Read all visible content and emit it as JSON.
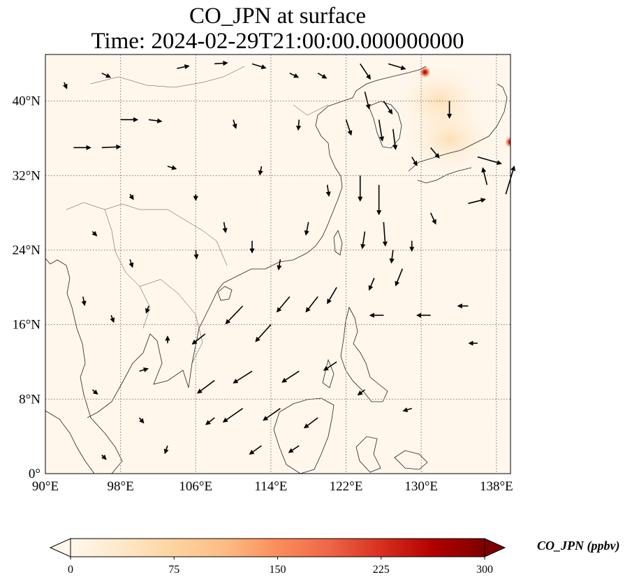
{
  "title": {
    "line1": "CO_JPN at surface",
    "line2": "Time: 2024-02-29T21:00:00.000000000"
  },
  "chart_data": {
    "type": "heatmap",
    "variable": "CO_JPN",
    "level": "surface",
    "time": "2024-02-29T21:00:00.000000000",
    "lon_range": [
      90,
      139.5
    ],
    "lat_range": [
      0,
      45
    ],
    "x_ticks": [
      "90°E",
      "98°E",
      "106°E",
      "114°E",
      "122°E",
      "130°E",
      "138°E"
    ],
    "x_tick_values": [
      90,
      98,
      106,
      114,
      122,
      130,
      138
    ],
    "y_ticks": [
      "0°",
      "8°N",
      "16°N",
      "24°N",
      "32°N",
      "40°N"
    ],
    "y_tick_values": [
      0,
      8,
      16,
      24,
      32,
      40
    ],
    "grid": true,
    "colorbar": {
      "label": "CO_JPN (ppbv)",
      "ticks": [
        "0",
        "75",
        "150",
        "225",
        "300"
      ],
      "tick_values": [
        0,
        75,
        150,
        225,
        300
      ],
      "range": [
        0,
        300
      ],
      "colormap": "OrRd",
      "colors": [
        "#fff7ec",
        "#fee8c8",
        "#fdd49e",
        "#fdbb84",
        "#fc8d59",
        "#ef6548",
        "#d7301f",
        "#b30000",
        "#7f0000"
      ],
      "extend": "both"
    },
    "hotspots": [
      {
        "lon": 130.4,
        "lat": 43.1,
        "value": 300
      },
      {
        "lon": 139.5,
        "lat": 35.6,
        "value": 280
      }
    ],
    "enhanced_regions": [
      {
        "lon": 133,
        "lat": 36,
        "value": 30
      },
      {
        "lon": 132,
        "lat": 40,
        "value": 20
      }
    ],
    "wind_vectors": [
      {
        "lon": 92,
        "lat": 42,
        "u": 0.3,
        "v": -0.7
      },
      {
        "lon": 96,
        "lat": 43,
        "u": 1.0,
        "v": -0.5
      },
      {
        "lon": 104,
        "lat": 43.5,
        "u": 1.4,
        "v": 0.3
      },
      {
        "lon": 108,
        "lat": 44,
        "u": 1.5,
        "v": 0.1
      },
      {
        "lon": 112,
        "lat": 44,
        "u": 1.6,
        "v": -0.5
      },
      {
        "lon": 116,
        "lat": 43,
        "u": 1.0,
        "v": -0.5
      },
      {
        "lon": 119,
        "lat": 43,
        "u": 1.0,
        "v": -0.6
      },
      {
        "lon": 93,
        "lat": 35,
        "u": 2.0,
        "v": 0.0
      },
      {
        "lon": 96,
        "lat": 35,
        "u": 2.2,
        "v": 0.1
      },
      {
        "lon": 98,
        "lat": 38,
        "u": 2.0,
        "v": 0.0
      },
      {
        "lon": 101,
        "lat": 38,
        "u": 1.5,
        "v": -0.2
      },
      {
        "lon": 103,
        "lat": 33,
        "u": 1.0,
        "v": -0.3
      },
      {
        "lon": 110,
        "lat": 38,
        "u": 0.3,
        "v": -1.0
      },
      {
        "lon": 117,
        "lat": 38,
        "u": -0.1,
        "v": -1.2
      },
      {
        "lon": 122,
        "lat": 38,
        "u": 0.6,
        "v": -1.8
      },
      {
        "lon": 123.5,
        "lat": 44,
        "u": 1.2,
        "v": -1.8
      },
      {
        "lon": 124,
        "lat": 41,
        "u": 0.5,
        "v": -2.0
      },
      {
        "lon": 126.5,
        "lat": 44,
        "u": 2.0,
        "v": -0.6
      },
      {
        "lon": 126,
        "lat": 40,
        "u": 1.0,
        "v": -1.5
      },
      {
        "lon": 125.5,
        "lat": 38,
        "u": 0.4,
        "v": -2.5
      },
      {
        "lon": 127,
        "lat": 37,
        "u": 0.3,
        "v": -2.4
      },
      {
        "lon": 129,
        "lat": 34,
        "u": 0.6,
        "v": -1.0
      },
      {
        "lon": 131,
        "lat": 35,
        "u": 1.0,
        "v": -1.2
      },
      {
        "lon": 133,
        "lat": 40,
        "u": 0.0,
        "v": -2.0
      },
      {
        "lon": 136,
        "lat": 34,
        "u": 2.8,
        "v": -0.8
      },
      {
        "lon": 137,
        "lat": 31,
        "u": -0.5,
        "v": 2.0
      },
      {
        "lon": 135,
        "lat": 29,
        "u": 2.0,
        "v": 0.5
      },
      {
        "lon": 139,
        "lat": 30,
        "u": 1.0,
        "v": 3.3
      },
      {
        "lon": 123.5,
        "lat": 32,
        "u": 0.0,
        "v": -3.0
      },
      {
        "lon": 125.5,
        "lat": 31,
        "u": 0.0,
        "v": -3.5
      },
      {
        "lon": 126,
        "lat": 27,
        "u": 0.2,
        "v": -2.8
      },
      {
        "lon": 124,
        "lat": 26,
        "u": -0.3,
        "v": -2.0
      },
      {
        "lon": 127,
        "lat": 24,
        "u": -0.2,
        "v": -1.5
      },
      {
        "lon": 128,
        "lat": 22,
        "u": -0.8,
        "v": -2.0
      },
      {
        "lon": 125,
        "lat": 21,
        "u": -0.6,
        "v": -1.4
      },
      {
        "lon": 121,
        "lat": 20,
        "u": -1.1,
        "v": -1.9
      },
      {
        "lon": 119,
        "lat": 19,
        "u": -1.4,
        "v": -1.8
      },
      {
        "lon": 116,
        "lat": 19,
        "u": -1.5,
        "v": -1.8
      },
      {
        "lon": 111,
        "lat": 18,
        "u": -2.0,
        "v": -2.1
      },
      {
        "lon": 114,
        "lat": 16,
        "u": -1.8,
        "v": -2.0
      },
      {
        "lon": 107,
        "lat": 15,
        "u": -1.5,
        "v": -1.2
      },
      {
        "lon": 108,
        "lat": 10,
        "u": -2.0,
        "v": -1.5
      },
      {
        "lon": 112,
        "lat": 11,
        "u": -2.2,
        "v": -1.4
      },
      {
        "lon": 117,
        "lat": 11,
        "u": -2.0,
        "v": -1.3
      },
      {
        "lon": 121,
        "lat": 12,
        "u": -1.5,
        "v": -1.0
      },
      {
        "lon": 111,
        "lat": 7,
        "u": -2.3,
        "v": -1.6
      },
      {
        "lon": 115,
        "lat": 7,
        "u": -2.0,
        "v": -1.4
      },
      {
        "lon": 119,
        "lat": 6,
        "u": -1.6,
        "v": -1.2
      },
      {
        "lon": 113,
        "lat": 3,
        "u": -1.4,
        "v": -1.0
      },
      {
        "lon": 117,
        "lat": 3,
        "u": -1.2,
        "v": -0.8
      },
      {
        "lon": 108,
        "lat": 6,
        "u": -1.0,
        "v": -0.8
      },
      {
        "lon": 126,
        "lat": 17,
        "u": -1.6,
        "v": 0.0
      },
      {
        "lon": 131,
        "lat": 17,
        "u": -1.6,
        "v": 0.0
      },
      {
        "lon": 135,
        "lat": 18,
        "u": -1.2,
        "v": 0.0
      },
      {
        "lon": 136,
        "lat": 14,
        "u": -1.0,
        "v": 0.0
      },
      {
        "lon": 129,
        "lat": 7,
        "u": -1.0,
        "v": -0.3
      },
      {
        "lon": 124,
        "lat": 9,
        "u": -0.8,
        "v": -0.6
      },
      {
        "lon": 95,
        "lat": 26,
        "u": 0.5,
        "v": -0.5
      },
      {
        "lon": 99,
        "lat": 23,
        "u": 0.3,
        "v": -0.9
      },
      {
        "lon": 94,
        "lat": 19,
        "u": 0.2,
        "v": -1.0
      },
      {
        "lon": 97,
        "lat": 17,
        "u": 0.3,
        "v": -0.8
      },
      {
        "lon": 101,
        "lat": 18,
        "u": -0.3,
        "v": -0.8
      },
      {
        "lon": 103,
        "lat": 14,
        "u": 0.0,
        "v": 0.8
      },
      {
        "lon": 100,
        "lat": 11,
        "u": 1.0,
        "v": 0.3
      },
      {
        "lon": 95,
        "lat": 9,
        "u": 0.6,
        "v": -0.5
      },
      {
        "lon": 100,
        "lat": 6,
        "u": 0.5,
        "v": -0.6
      },
      {
        "lon": 96,
        "lat": 2,
        "u": 0.5,
        "v": -0.5
      },
      {
        "lon": 103,
        "lat": 3,
        "u": -0.3,
        "v": -0.9
      },
      {
        "lon": 106,
        "lat": 24,
        "u": 0.1,
        "v": -1.0
      },
      {
        "lon": 109,
        "lat": 27,
        "u": 0.2,
        "v": -1.2
      },
      {
        "lon": 112,
        "lat": 25,
        "u": 0.0,
        "v": -1.4
      },
      {
        "lon": 115,
        "lat": 23,
        "u": -0.2,
        "v": -1.2
      },
      {
        "lon": 118,
        "lat": 27,
        "u": -0.3,
        "v": -1.5
      },
      {
        "lon": 120,
        "lat": 31,
        "u": 0.2,
        "v": -1.3
      },
      {
        "lon": 113,
        "lat": 33,
        "u": -0.2,
        "v": -1.0
      },
      {
        "lon": 106,
        "lat": 30,
        "u": 0.0,
        "v": -0.7
      },
      {
        "lon": 99,
        "lat": 30,
        "u": 0.4,
        "v": -0.6
      },
      {
        "lon": 131,
        "lat": 28,
        "u": 0.6,
        "v": -1.3
      },
      {
        "lon": 129,
        "lat": 25,
        "u": 0.0,
        "v": -1.2
      }
    ]
  }
}
